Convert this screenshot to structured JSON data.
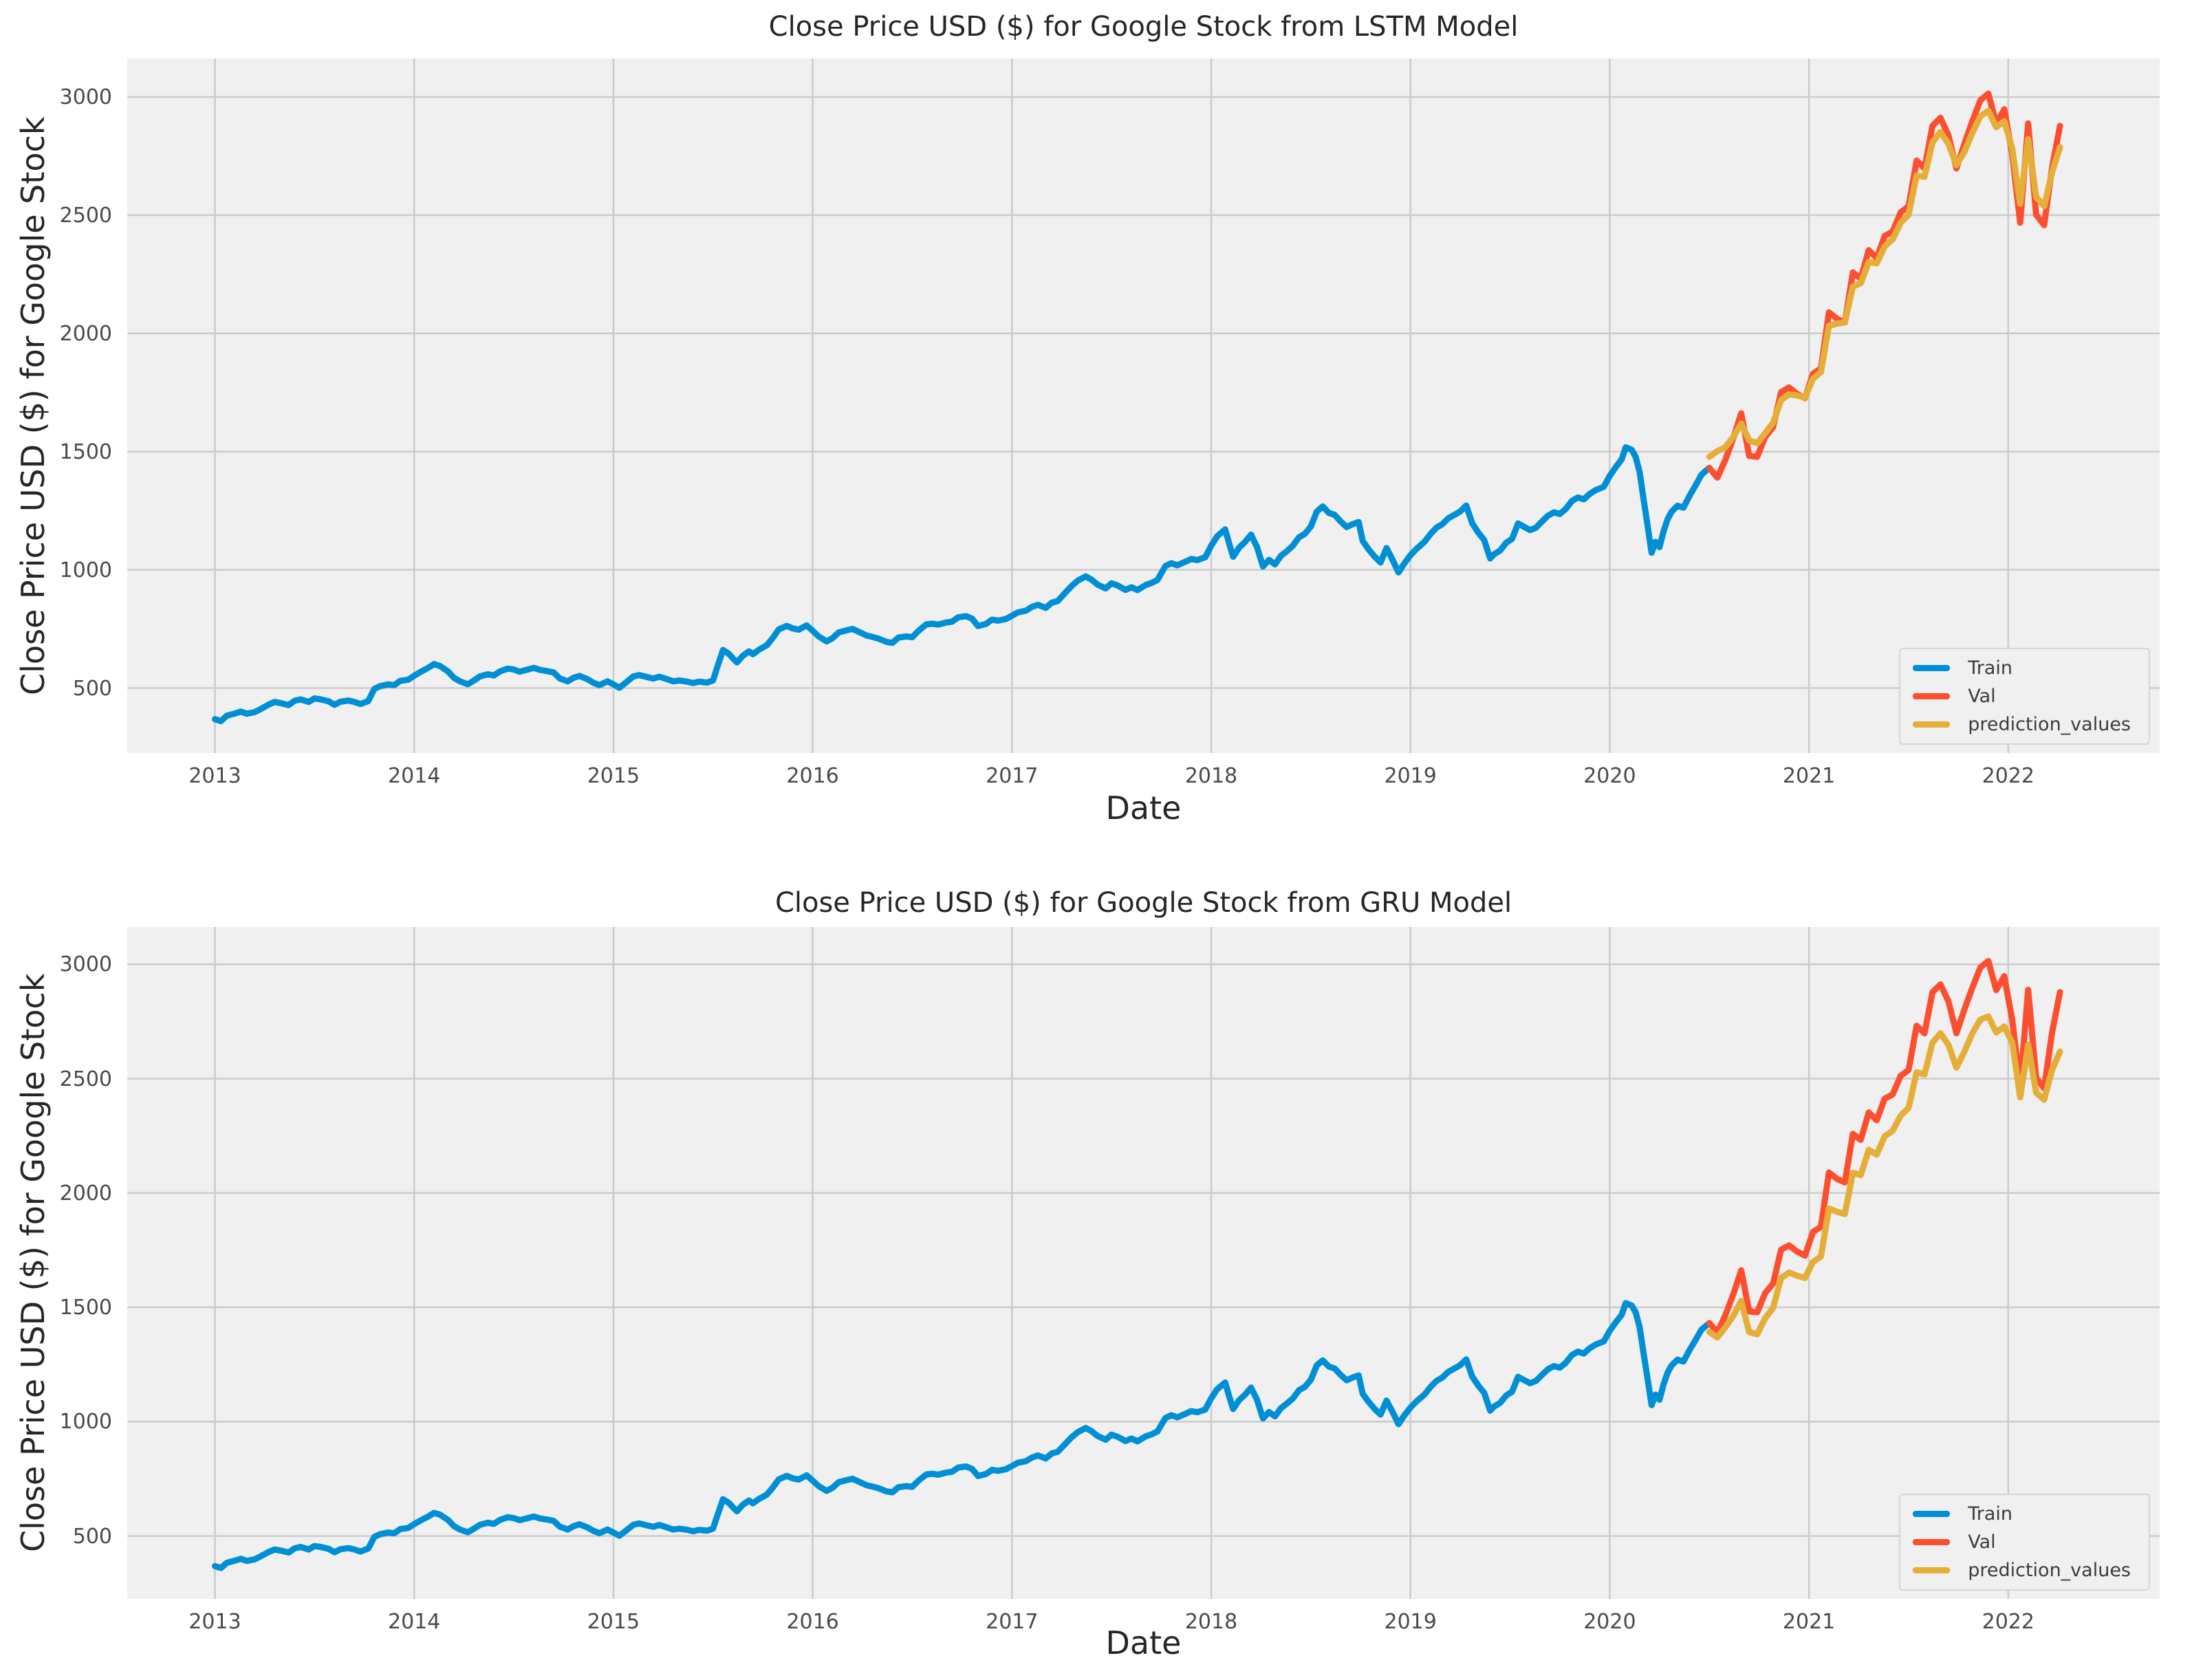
{
  "style": {
    "figure_background": "#ffffff",
    "plot_background": "#f0f0f0",
    "grid_color": "#cbcbcb",
    "title_color": "#262626",
    "tick_color": "#4a4a4a",
    "train_color": "#008fd5",
    "val_color": "#fc4f30",
    "prediction_color": "#e5ae38",
    "legend_background": "#f0f0f0",
    "legend_border": "#d5d5d5"
  },
  "chart_data": [
    {
      "type": "line",
      "title": "Close Price USD ($) for Google Stock from LSTM Model",
      "xlabel": "Date",
      "ylabel": "Close Price USD ($) for Google Stock",
      "xlim": [
        2012.56,
        2022.76
      ],
      "ylim": [
        225,
        3163
      ],
      "xticks": [
        2013,
        2014,
        2015,
        2016,
        2017,
        2018,
        2019,
        2020,
        2021,
        2022
      ],
      "yticks": [
        500,
        1000,
        1500,
        2000,
        2500,
        3000
      ],
      "grid": true,
      "legend_position": "lower right",
      "series": [
        {
          "name": "Train",
          "color": "#008fd5",
          "data_key": "train"
        },
        {
          "name": "Val",
          "color": "#fc4f30",
          "data_key": "val"
        },
        {
          "name": "prediction_values",
          "color": "#e5ae38",
          "data_key": "lstm_prediction"
        }
      ]
    },
    {
      "type": "line",
      "title": "Close Price USD ($) for Google Stock from GRU Model",
      "xlabel": "Date",
      "ylabel": "Close Price USD ($) for Google Stock",
      "xlim": [
        2012.56,
        2022.76
      ],
      "ylim": [
        225,
        3163
      ],
      "xticks": [
        2013,
        2014,
        2015,
        2016,
        2017,
        2018,
        2019,
        2020,
        2021,
        2022
      ],
      "yticks": [
        500,
        1000,
        1500,
        2000,
        2500,
        3000
      ],
      "grid": true,
      "legend_position": "lower right",
      "series": [
        {
          "name": "Train",
          "color": "#008fd5",
          "data_key": "train"
        },
        {
          "name": "Val",
          "color": "#fc4f30",
          "data_key": "val"
        },
        {
          "name": "prediction_values",
          "color": "#e5ae38",
          "data_key": "gru_prediction"
        }
      ]
    }
  ],
  "series_data": {
    "train": [
      [
        2013.0,
        368
      ],
      [
        2013.03,
        360
      ],
      [
        2013.06,
        383
      ],
      [
        2013.1,
        392
      ],
      [
        2013.13,
        400
      ],
      [
        2013.16,
        391
      ],
      [
        2013.2,
        398
      ],
      [
        2013.23,
        411
      ],
      [
        2013.27,
        430
      ],
      [
        2013.3,
        441
      ],
      [
        2013.33,
        436
      ],
      [
        2013.37,
        428
      ],
      [
        2013.4,
        446
      ],
      [
        2013.43,
        452
      ],
      [
        2013.47,
        441
      ],
      [
        2013.5,
        456
      ],
      [
        2013.53,
        452
      ],
      [
        2013.57,
        444
      ],
      [
        2013.6,
        429
      ],
      [
        2013.63,
        442
      ],
      [
        2013.67,
        447
      ],
      [
        2013.7,
        441
      ],
      [
        2013.73,
        432
      ],
      [
        2013.77,
        445
      ],
      [
        2013.8,
        496
      ],
      [
        2013.83,
        508
      ],
      [
        2013.87,
        515
      ],
      [
        2013.9,
        512
      ],
      [
        2013.93,
        530
      ],
      [
        2013.97,
        535
      ],
      [
        2014.0,
        552
      ],
      [
        2014.03,
        567
      ],
      [
        2014.07,
        585
      ],
      [
        2014.1,
        601
      ],
      [
        2014.13,
        593
      ],
      [
        2014.17,
        570
      ],
      [
        2014.2,
        543
      ],
      [
        2014.23,
        528
      ],
      [
        2014.27,
        516
      ],
      [
        2014.3,
        532
      ],
      [
        2014.33,
        549
      ],
      [
        2014.37,
        558
      ],
      [
        2014.4,
        553
      ],
      [
        2014.43,
        570
      ],
      [
        2014.47,
        582
      ],
      [
        2014.5,
        578
      ],
      [
        2014.53,
        569
      ],
      [
        2014.57,
        578
      ],
      [
        2014.6,
        585
      ],
      [
        2014.63,
        577
      ],
      [
        2014.67,
        571
      ],
      [
        2014.7,
        566
      ],
      [
        2014.73,
        541
      ],
      [
        2014.77,
        528
      ],
      [
        2014.8,
        543
      ],
      [
        2014.83,
        551
      ],
      [
        2014.87,
        537
      ],
      [
        2014.9,
        522
      ],
      [
        2014.93,
        512
      ],
      [
        2014.97,
        528
      ],
      [
        2015.0,
        515
      ],
      [
        2015.03,
        501
      ],
      [
        2015.07,
        528
      ],
      [
        2015.1,
        549
      ],
      [
        2015.13,
        555
      ],
      [
        2015.17,
        546
      ],
      [
        2015.2,
        540
      ],
      [
        2015.23,
        548
      ],
      [
        2015.27,
        537
      ],
      [
        2015.3,
        528
      ],
      [
        2015.33,
        532
      ],
      [
        2015.37,
        527
      ],
      [
        2015.4,
        521
      ],
      [
        2015.43,
        527
      ],
      [
        2015.47,
        523
      ],
      [
        2015.5,
        532
      ],
      [
        2015.52,
        585
      ],
      [
        2015.55,
        661
      ],
      [
        2015.58,
        644
      ],
      [
        2015.6,
        625
      ],
      [
        2015.62,
        608
      ],
      [
        2015.65,
        637
      ],
      [
        2015.68,
        655
      ],
      [
        2015.7,
        643
      ],
      [
        2015.73,
        662
      ],
      [
        2015.77,
        681
      ],
      [
        2015.8,
        712
      ],
      [
        2015.83,
        748
      ],
      [
        2015.87,
        763
      ],
      [
        2015.9,
        752
      ],
      [
        2015.93,
        747
      ],
      [
        2015.97,
        765
      ],
      [
        2016.0,
        742
      ],
      [
        2016.03,
        718
      ],
      [
        2016.07,
        697
      ],
      [
        2016.1,
        711
      ],
      [
        2016.13,
        735
      ],
      [
        2016.17,
        744
      ],
      [
        2016.2,
        750
      ],
      [
        2016.23,
        738
      ],
      [
        2016.27,
        722
      ],
      [
        2016.3,
        716
      ],
      [
        2016.33,
        709
      ],
      [
        2016.37,
        695
      ],
      [
        2016.4,
        691
      ],
      [
        2016.43,
        713
      ],
      [
        2016.47,
        718
      ],
      [
        2016.5,
        715
      ],
      [
        2016.53,
        741
      ],
      [
        2016.57,
        769
      ],
      [
        2016.6,
        772
      ],
      [
        2016.63,
        768
      ],
      [
        2016.67,
        777
      ],
      [
        2016.7,
        781
      ],
      [
        2016.73,
        799
      ],
      [
        2016.77,
        804
      ],
      [
        2016.8,
        793
      ],
      [
        2016.83,
        762
      ],
      [
        2016.87,
        771
      ],
      [
        2016.9,
        789
      ],
      [
        2016.93,
        785
      ],
      [
        2016.97,
        792
      ],
      [
        2017.0,
        806
      ],
      [
        2017.03,
        820
      ],
      [
        2017.07,
        827
      ],
      [
        2017.1,
        843
      ],
      [
        2017.13,
        852
      ],
      [
        2017.17,
        839
      ],
      [
        2017.2,
        861
      ],
      [
        2017.23,
        868
      ],
      [
        2017.27,
        905
      ],
      [
        2017.3,
        932
      ],
      [
        2017.33,
        954
      ],
      [
        2017.37,
        972
      ],
      [
        2017.4,
        958
      ],
      [
        2017.43,
        937
      ],
      [
        2017.47,
        921
      ],
      [
        2017.5,
        943
      ],
      [
        2017.53,
        934
      ],
      [
        2017.57,
        915
      ],
      [
        2017.6,
        926
      ],
      [
        2017.63,
        914
      ],
      [
        2017.67,
        935
      ],
      [
        2017.7,
        944
      ],
      [
        2017.73,
        957
      ],
      [
        2017.77,
        1016
      ],
      [
        2017.8,
        1028
      ],
      [
        2017.83,
        1019
      ],
      [
        2017.87,
        1034
      ],
      [
        2017.9,
        1046
      ],
      [
        2017.93,
        1041
      ],
      [
        2017.97,
        1053
      ],
      [
        2018.0,
        1102
      ],
      [
        2018.03,
        1142
      ],
      [
        2018.07,
        1171
      ],
      [
        2018.09,
        1111
      ],
      [
        2018.11,
        1055
      ],
      [
        2018.14,
        1094
      ],
      [
        2018.17,
        1118
      ],
      [
        2018.2,
        1149
      ],
      [
        2018.23,
        1096
      ],
      [
        2018.26,
        1014
      ],
      [
        2018.29,
        1042
      ],
      [
        2018.32,
        1023
      ],
      [
        2018.35,
        1059
      ],
      [
        2018.38,
        1079
      ],
      [
        2018.41,
        1102
      ],
      [
        2018.44,
        1137
      ],
      [
        2018.47,
        1152
      ],
      [
        2018.5,
        1183
      ],
      [
        2018.53,
        1246
      ],
      [
        2018.56,
        1268
      ],
      [
        2018.59,
        1241
      ],
      [
        2018.62,
        1232
      ],
      [
        2018.65,
        1204
      ],
      [
        2018.68,
        1181
      ],
      [
        2018.71,
        1193
      ],
      [
        2018.74,
        1202
      ],
      [
        2018.76,
        1122
      ],
      [
        2018.79,
        1086
      ],
      [
        2018.82,
        1056
      ],
      [
        2018.85,
        1031
      ],
      [
        2018.88,
        1092
      ],
      [
        2018.91,
        1043
      ],
      [
        2018.94,
        989
      ],
      [
        2018.97,
        1028
      ],
      [
        2019.0,
        1062
      ],
      [
        2019.03,
        1088
      ],
      [
        2019.07,
        1118
      ],
      [
        2019.1,
        1151
      ],
      [
        2019.13,
        1178
      ],
      [
        2019.16,
        1193
      ],
      [
        2019.19,
        1218
      ],
      [
        2019.22,
        1232
      ],
      [
        2019.25,
        1247
      ],
      [
        2019.28,
        1272
      ],
      [
        2019.31,
        1197
      ],
      [
        2019.34,
        1158
      ],
      [
        2019.37,
        1126
      ],
      [
        2019.4,
        1048
      ],
      [
        2019.42,
        1066
      ],
      [
        2019.45,
        1082
      ],
      [
        2019.48,
        1114
      ],
      [
        2019.51,
        1131
      ],
      [
        2019.54,
        1196
      ],
      [
        2019.57,
        1182
      ],
      [
        2019.6,
        1168
      ],
      [
        2019.63,
        1178
      ],
      [
        2019.66,
        1204
      ],
      [
        2019.69,
        1229
      ],
      [
        2019.72,
        1243
      ],
      [
        2019.75,
        1236
      ],
      [
        2019.78,
        1258
      ],
      [
        2019.81,
        1291
      ],
      [
        2019.84,
        1306
      ],
      [
        2019.87,
        1298
      ],
      [
        2019.9,
        1321
      ],
      [
        2019.93,
        1337
      ],
      [
        2019.97,
        1351
      ],
      [
        2020.0,
        1397
      ],
      [
        2020.03,
        1434
      ],
      [
        2020.06,
        1467
      ],
      [
        2020.08,
        1518
      ],
      [
        2020.11,
        1508
      ],
      [
        2020.13,
        1478
      ],
      [
        2020.15,
        1413
      ],
      [
        2020.17,
        1298
      ],
      [
        2020.19,
        1186
      ],
      [
        2020.21,
        1072
      ],
      [
        2020.23,
        1118
      ],
      [
        2020.25,
        1096
      ],
      [
        2020.27,
        1162
      ],
      [
        2020.29,
        1213
      ],
      [
        2020.31,
        1245
      ],
      [
        2020.34,
        1271
      ],
      [
        2020.37,
        1263
      ],
      [
        2020.4,
        1312
      ],
      [
        2020.43,
        1356
      ],
      [
        2020.46,
        1402
      ],
      [
        2020.48,
        1417
      ],
      [
        2020.5,
        1431
      ]
    ],
    "val": [
      [
        2020.5,
        1431
      ],
      [
        2020.54,
        1390
      ],
      [
        2020.58,
        1464
      ],
      [
        2020.62,
        1556
      ],
      [
        2020.66,
        1662
      ],
      [
        2020.7,
        1482
      ],
      [
        2020.74,
        1478
      ],
      [
        2020.78,
        1562
      ],
      [
        2020.82,
        1604
      ],
      [
        2020.86,
        1752
      ],
      [
        2020.9,
        1771
      ],
      [
        2020.94,
        1744
      ],
      [
        2020.98,
        1726
      ],
      [
        2021.02,
        1829
      ],
      [
        2021.06,
        1852
      ],
      [
        2021.1,
        2089
      ],
      [
        2021.14,
        2062
      ],
      [
        2021.18,
        2046
      ],
      [
        2021.22,
        2258
      ],
      [
        2021.26,
        2232
      ],
      [
        2021.3,
        2352
      ],
      [
        2021.34,
        2318
      ],
      [
        2021.38,
        2412
      ],
      [
        2021.42,
        2431
      ],
      [
        2021.46,
        2512
      ],
      [
        2021.5,
        2538
      ],
      [
        2021.54,
        2731
      ],
      [
        2021.58,
        2698
      ],
      [
        2021.62,
        2878
      ],
      [
        2021.66,
        2912
      ],
      [
        2021.7,
        2838
      ],
      [
        2021.74,
        2698
      ],
      [
        2021.78,
        2802
      ],
      [
        2021.82,
        2898
      ],
      [
        2021.86,
        2986
      ],
      [
        2021.9,
        3014
      ],
      [
        2021.94,
        2887
      ],
      [
        2021.98,
        2948
      ],
      [
        2022.02,
        2758
      ],
      [
        2022.06,
        2468
      ],
      [
        2022.1,
        2888
      ],
      [
        2022.14,
        2502
      ],
      [
        2022.18,
        2458
      ],
      [
        2022.22,
        2702
      ],
      [
        2022.26,
        2878
      ]
    ],
    "lstm_prediction": [
      [
        2020.5,
        1478
      ],
      [
        2020.54,
        1502
      ],
      [
        2020.58,
        1518
      ],
      [
        2020.62,
        1562
      ],
      [
        2020.66,
        1618
      ],
      [
        2020.7,
        1548
      ],
      [
        2020.74,
        1535
      ],
      [
        2020.78,
        1578
      ],
      [
        2020.82,
        1622
      ],
      [
        2020.86,
        1718
      ],
      [
        2020.9,
        1742
      ],
      [
        2020.94,
        1738
      ],
      [
        2020.98,
        1728
      ],
      [
        2021.02,
        1808
      ],
      [
        2021.06,
        1836
      ],
      [
        2021.1,
        2032
      ],
      [
        2021.14,
        2041
      ],
      [
        2021.18,
        2046
      ],
      [
        2021.22,
        2198
      ],
      [
        2021.26,
        2212
      ],
      [
        2021.3,
        2302
      ],
      [
        2021.34,
        2296
      ],
      [
        2021.38,
        2368
      ],
      [
        2021.42,
        2398
      ],
      [
        2021.46,
        2468
      ],
      [
        2021.5,
        2502
      ],
      [
        2021.54,
        2668
      ],
      [
        2021.58,
        2662
      ],
      [
        2021.62,
        2808
      ],
      [
        2021.66,
        2852
      ],
      [
        2021.7,
        2802
      ],
      [
        2021.74,
        2712
      ],
      [
        2021.78,
        2768
      ],
      [
        2021.82,
        2848
      ],
      [
        2021.86,
        2918
      ],
      [
        2021.9,
        2942
      ],
      [
        2021.94,
        2872
      ],
      [
        2021.98,
        2898
      ],
      [
        2022.02,
        2782
      ],
      [
        2022.06,
        2548
      ],
      [
        2022.1,
        2822
      ],
      [
        2022.14,
        2578
      ],
      [
        2022.18,
        2538
      ],
      [
        2022.22,
        2682
      ],
      [
        2022.26,
        2788
      ]
    ],
    "gru_prediction": [
      [
        2020.5,
        1392
      ],
      [
        2020.54,
        1368
      ],
      [
        2020.58,
        1412
      ],
      [
        2020.62,
        1462
      ],
      [
        2020.66,
        1528
      ],
      [
        2020.7,
        1392
      ],
      [
        2020.74,
        1382
      ],
      [
        2020.78,
        1452
      ],
      [
        2020.82,
        1498
      ],
      [
        2020.86,
        1628
      ],
      [
        2020.9,
        1652
      ],
      [
        2020.94,
        1638
      ],
      [
        2020.98,
        1628
      ],
      [
        2021.02,
        1698
      ],
      [
        2021.06,
        1722
      ],
      [
        2021.1,
        1932
      ],
      [
        2021.14,
        1918
      ],
      [
        2021.18,
        1908
      ],
      [
        2021.22,
        2088
      ],
      [
        2021.26,
        2078
      ],
      [
        2021.3,
        2188
      ],
      [
        2021.34,
        2168
      ],
      [
        2021.38,
        2248
      ],
      [
        2021.42,
        2272
      ],
      [
        2021.46,
        2338
      ],
      [
        2021.5,
        2372
      ],
      [
        2021.54,
        2528
      ],
      [
        2021.58,
        2518
      ],
      [
        2021.62,
        2658
      ],
      [
        2021.66,
        2698
      ],
      [
        2021.7,
        2648
      ],
      [
        2021.74,
        2548
      ],
      [
        2021.78,
        2618
      ],
      [
        2021.82,
        2698
      ],
      [
        2021.86,
        2758
      ],
      [
        2021.9,
        2772
      ],
      [
        2021.94,
        2702
      ],
      [
        2021.98,
        2728
      ],
      [
        2022.02,
        2658
      ],
      [
        2022.06,
        2418
      ],
      [
        2022.1,
        2648
      ],
      [
        2022.14,
        2438
      ],
      [
        2022.18,
        2408
      ],
      [
        2022.22,
        2538
      ],
      [
        2022.26,
        2618
      ]
    ]
  }
}
